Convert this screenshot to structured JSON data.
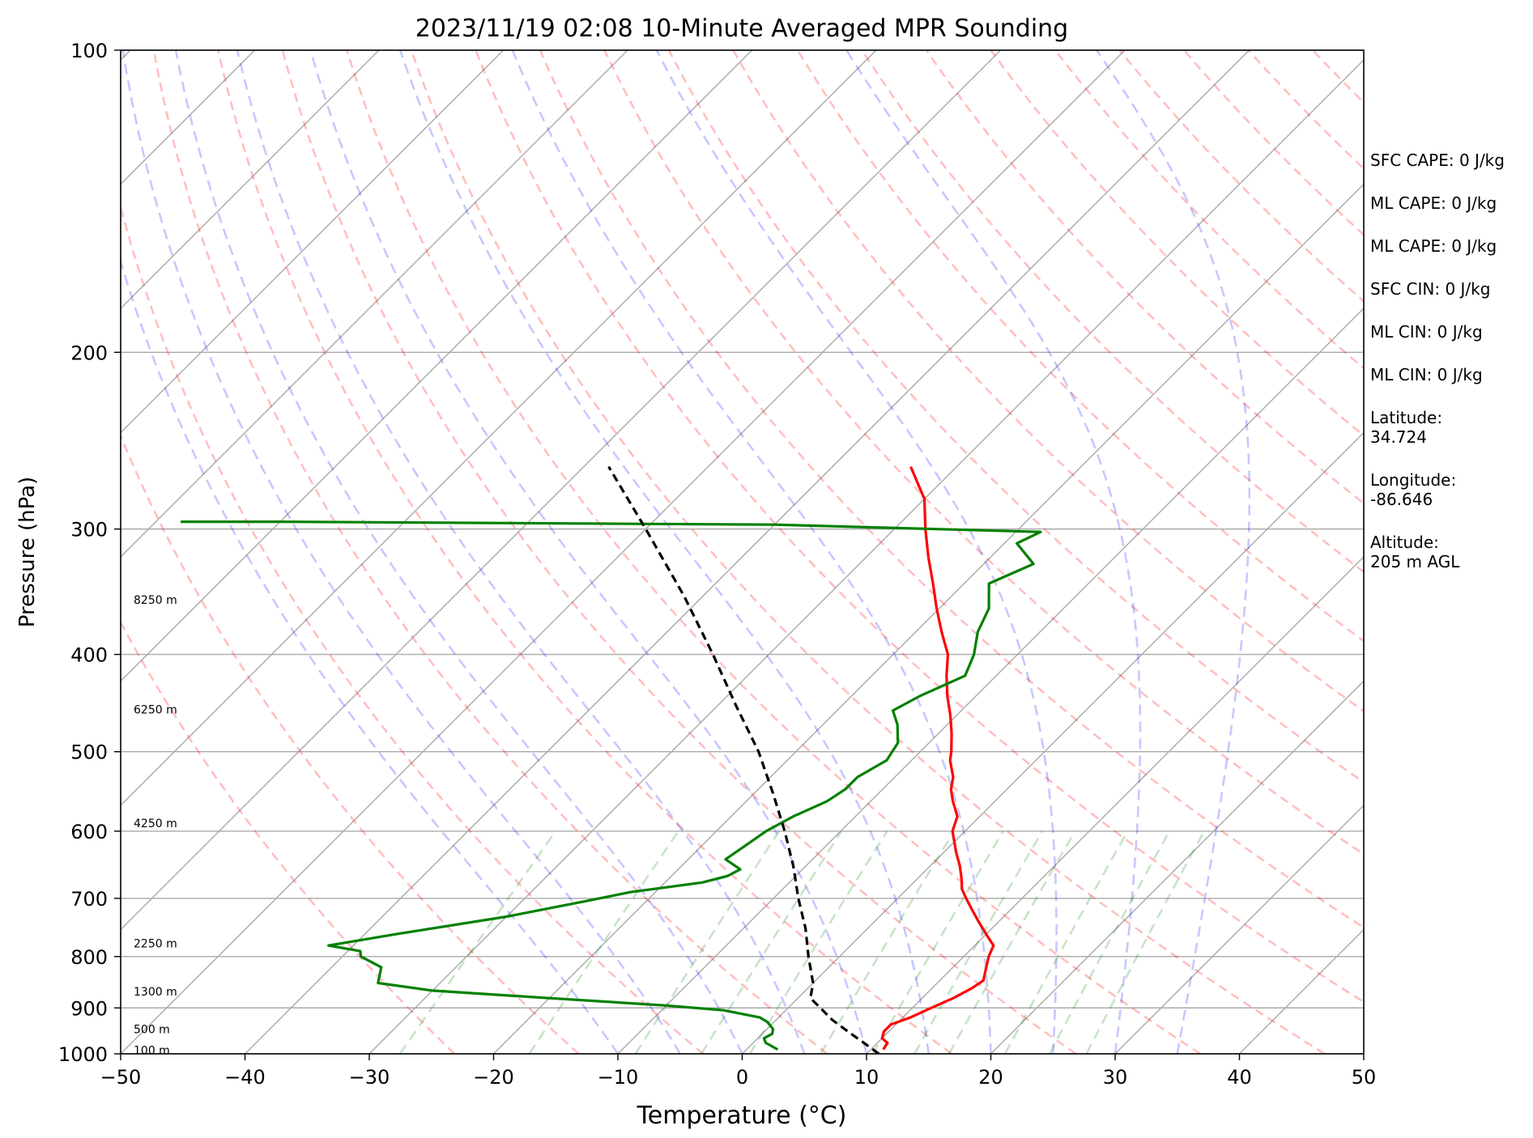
{
  "chart_data": {
    "type": "line",
    "subtype": "skew-t log-p sounding",
    "title": "2023/11/19 02:08 10-Minute Averaged MPR Sounding",
    "xlabel": "Temperature (°C)",
    "ylabel": "Pressure (hPa)",
    "xlim": [
      -50,
      50
    ],
    "ylim": [
      1000,
      100
    ],
    "y_scale": "log",
    "skew_degrees": 45,
    "x_ticks": [
      -50,
      -40,
      -30,
      -20,
      -10,
      0,
      10,
      20,
      30,
      40,
      50
    ],
    "x_tick_labels": [
      "−50",
      "−40",
      "−30",
      "−20",
      "−10",
      "0",
      "10",
      "20",
      "30",
      "40",
      "50"
    ],
    "y_ticks": [
      1000,
      900,
      800,
      700,
      600,
      500,
      400,
      300,
      200,
      100
    ],
    "y_tick_labels": [
      "1000",
      "900",
      "800",
      "700",
      "600",
      "500",
      "400",
      "300",
      "200",
      "100"
    ],
    "grid": true,
    "series": [
      {
        "role": "temperature",
        "color": "#ff0000",
        "points": [
          {
            "p": 990,
            "t": 11.0
          },
          {
            "p": 975,
            "t": 10.8
          },
          {
            "p": 965,
            "t": 10.0
          },
          {
            "p": 950,
            "t": 9.6
          },
          {
            "p": 935,
            "t": 9.6
          },
          {
            "p": 920,
            "t": 10.6
          },
          {
            "p": 900,
            "t": 11.5
          },
          {
            "p": 880,
            "t": 12.5
          },
          {
            "p": 860,
            "t": 13.2
          },
          {
            "p": 845,
            "t": 13.5
          },
          {
            "p": 830,
            "t": 13.0
          },
          {
            "p": 800,
            "t": 12.0
          },
          {
            "p": 780,
            "t": 11.5
          },
          {
            "p": 760,
            "t": 10.0
          },
          {
            "p": 740,
            "t": 8.5
          },
          {
            "p": 720,
            "t": 7.0
          },
          {
            "p": 700,
            "t": 5.5
          },
          {
            "p": 685,
            "t": 4.4
          },
          {
            "p": 670,
            "t": 3.6
          },
          {
            "p": 650,
            "t": 2.4
          },
          {
            "p": 630,
            "t": 1.0
          },
          {
            "p": 600,
            "t": -1.0
          },
          {
            "p": 580,
            "t": -1.8
          },
          {
            "p": 560,
            "t": -3.4
          },
          {
            "p": 545,
            "t": -4.5
          },
          {
            "p": 530,
            "t": -5.3
          },
          {
            "p": 510,
            "t": -6.9
          },
          {
            "p": 500,
            "t": -7.5
          },
          {
            "p": 480,
            "t": -8.9
          },
          {
            "p": 460,
            "t": -10.5
          },
          {
            "p": 440,
            "t": -12.3
          },
          {
            "p": 420,
            "t": -14.0
          },
          {
            "p": 400,
            "t": -15.6
          },
          {
            "p": 380,
            "t": -17.9
          },
          {
            "p": 360,
            "t": -20.2
          },
          {
            "p": 340,
            "t": -22.5
          },
          {
            "p": 320,
            "t": -25.0
          },
          {
            "p": 300,
            "t": -27.5
          },
          {
            "p": 280,
            "t": -30.0
          },
          {
            "p": 260,
            "t": -33.7
          }
        ]
      },
      {
        "role": "dewpoint",
        "color": "#008000",
        "points": [
          {
            "p": 990,
            "t": 2.5
          },
          {
            "p": 975,
            "t": 1.0
          },
          {
            "p": 965,
            "t": 0.5
          },
          {
            "p": 955,
            "t": 0.8
          },
          {
            "p": 945,
            "t": 0.5
          },
          {
            "p": 930,
            "t": -0.5
          },
          {
            "p": 920,
            "t": -1.5
          },
          {
            "p": 905,
            "t": -5.0
          },
          {
            "p": 895,
            "t": -10.0
          },
          {
            "p": 880,
            "t": -20.0
          },
          {
            "p": 865,
            "t": -30.0
          },
          {
            "p": 850,
            "t": -35.0
          },
          {
            "p": 820,
            "t": -36.0
          },
          {
            "p": 800,
            "t": -38.5
          },
          {
            "p": 790,
            "t": -39.0
          },
          {
            "p": 780,
            "t": -42.0
          },
          {
            "p": 760,
            "t": -37.5
          },
          {
            "p": 730,
            "t": -30.0
          },
          {
            "p": 705,
            "t": -25.0
          },
          {
            "p": 690,
            "t": -22.0
          },
          {
            "p": 675,
            "t": -17.0
          },
          {
            "p": 665,
            "t": -15.5
          },
          {
            "p": 655,
            "t": -15.0
          },
          {
            "p": 640,
            "t": -17.0
          },
          {
            "p": 620,
            "t": -16.5
          },
          {
            "p": 600,
            "t": -16.0
          },
          {
            "p": 580,
            "t": -15.0
          },
          {
            "p": 560,
            "t": -13.5
          },
          {
            "p": 545,
            "t": -13.0
          },
          {
            "p": 530,
            "t": -13.0
          },
          {
            "p": 510,
            "t": -12.0
          },
          {
            "p": 490,
            "t": -12.5
          },
          {
            "p": 470,
            "t": -14.0
          },
          {
            "p": 455,
            "t": -15.5
          },
          {
            "p": 440,
            "t": -14.5
          },
          {
            "p": 420,
            "t": -12.5
          },
          {
            "p": 400,
            "t": -13.5
          },
          {
            "p": 380,
            "t": -15.0
          },
          {
            "p": 360,
            "t": -16.0
          },
          {
            "p": 340,
            "t": -18.0
          },
          {
            "p": 325,
            "t": -16.0
          },
          {
            "p": 310,
            "t": -19.0
          },
          {
            "p": 302,
            "t": -18.0
          },
          {
            "p": 297,
            "t": -40.0
          },
          {
            "p": 295,
            "t": -80.0
          },
          {
            "p": 295,
            "t": -88.0
          }
        ]
      },
      {
        "role": "parcel",
        "color": "#000000",
        "points": [
          {
            "p": 1000,
            "t": 11.0
          },
          {
            "p": 975,
            "t": 8.9
          },
          {
            "p": 950,
            "t": 6.7
          },
          {
            "p": 925,
            "t": 4.5
          },
          {
            "p": 900,
            "t": 2.6
          },
          {
            "p": 880,
            "t": 1.0
          },
          {
            "p": 850,
            "t": 0.0
          },
          {
            "p": 800,
            "t": -2.5
          },
          {
            "p": 750,
            "t": -5.0
          },
          {
            "p": 700,
            "t": -8.0
          },
          {
            "p": 650,
            "t": -11.0
          },
          {
            "p": 600,
            "t": -14.5
          },
          {
            "p": 550,
            "t": -18.5
          },
          {
            "p": 500,
            "t": -23.0
          },
          {
            "p": 450,
            "t": -28.5
          },
          {
            "p": 400,
            "t": -34.5
          },
          {
            "p": 350,
            "t": -41.5
          },
          {
            "p": 300,
            "t": -50.0
          },
          {
            "p": 260,
            "t": -58.0
          }
        ]
      }
    ],
    "reference_lines": {
      "dry_adiabats_K": [
        250,
        260,
        270,
        280,
        290,
        300,
        310,
        320,
        330,
        340,
        350,
        360,
        370,
        380,
        390,
        400,
        410,
        420,
        430,
        440,
        450,
        460,
        470,
        480,
        490,
        500,
        510,
        520,
        530,
        540,
        550
      ],
      "moist_adiabats_C": [
        -10,
        -5,
        0,
        5,
        10,
        15,
        20,
        25,
        30,
        35
      ],
      "mixing_ratios_gkg": [
        0.4,
        1,
        2,
        3,
        4,
        6,
        8,
        10,
        12,
        16,
        20,
        24
      ]
    },
    "height_labels": [
      {
        "p": 353,
        "label": "8250 m"
      },
      {
        "p": 454,
        "label": "6250 m"
      },
      {
        "p": 589,
        "label": "4250 m"
      },
      {
        "p": 776,
        "label": "2250 m"
      },
      {
        "p": 867,
        "label": "1300 m"
      },
      {
        "p": 945,
        "label": "500 m"
      },
      {
        "p": 992,
        "label": "100 m"
      }
    ],
    "annotations": [
      "SFC CAPE: 0 J/kg",
      "ML CAPE: 0 J/kg",
      "ML CAPE: 0 J/kg",
      "SFC CIN: 0 J/kg",
      "ML CIN: 0 J/kg",
      "ML CIN: 0 J/kg",
      "Latitude:\n34.724",
      "Longitude:\n-86.646",
      "Altitude:\n205 m AGL"
    ]
  }
}
